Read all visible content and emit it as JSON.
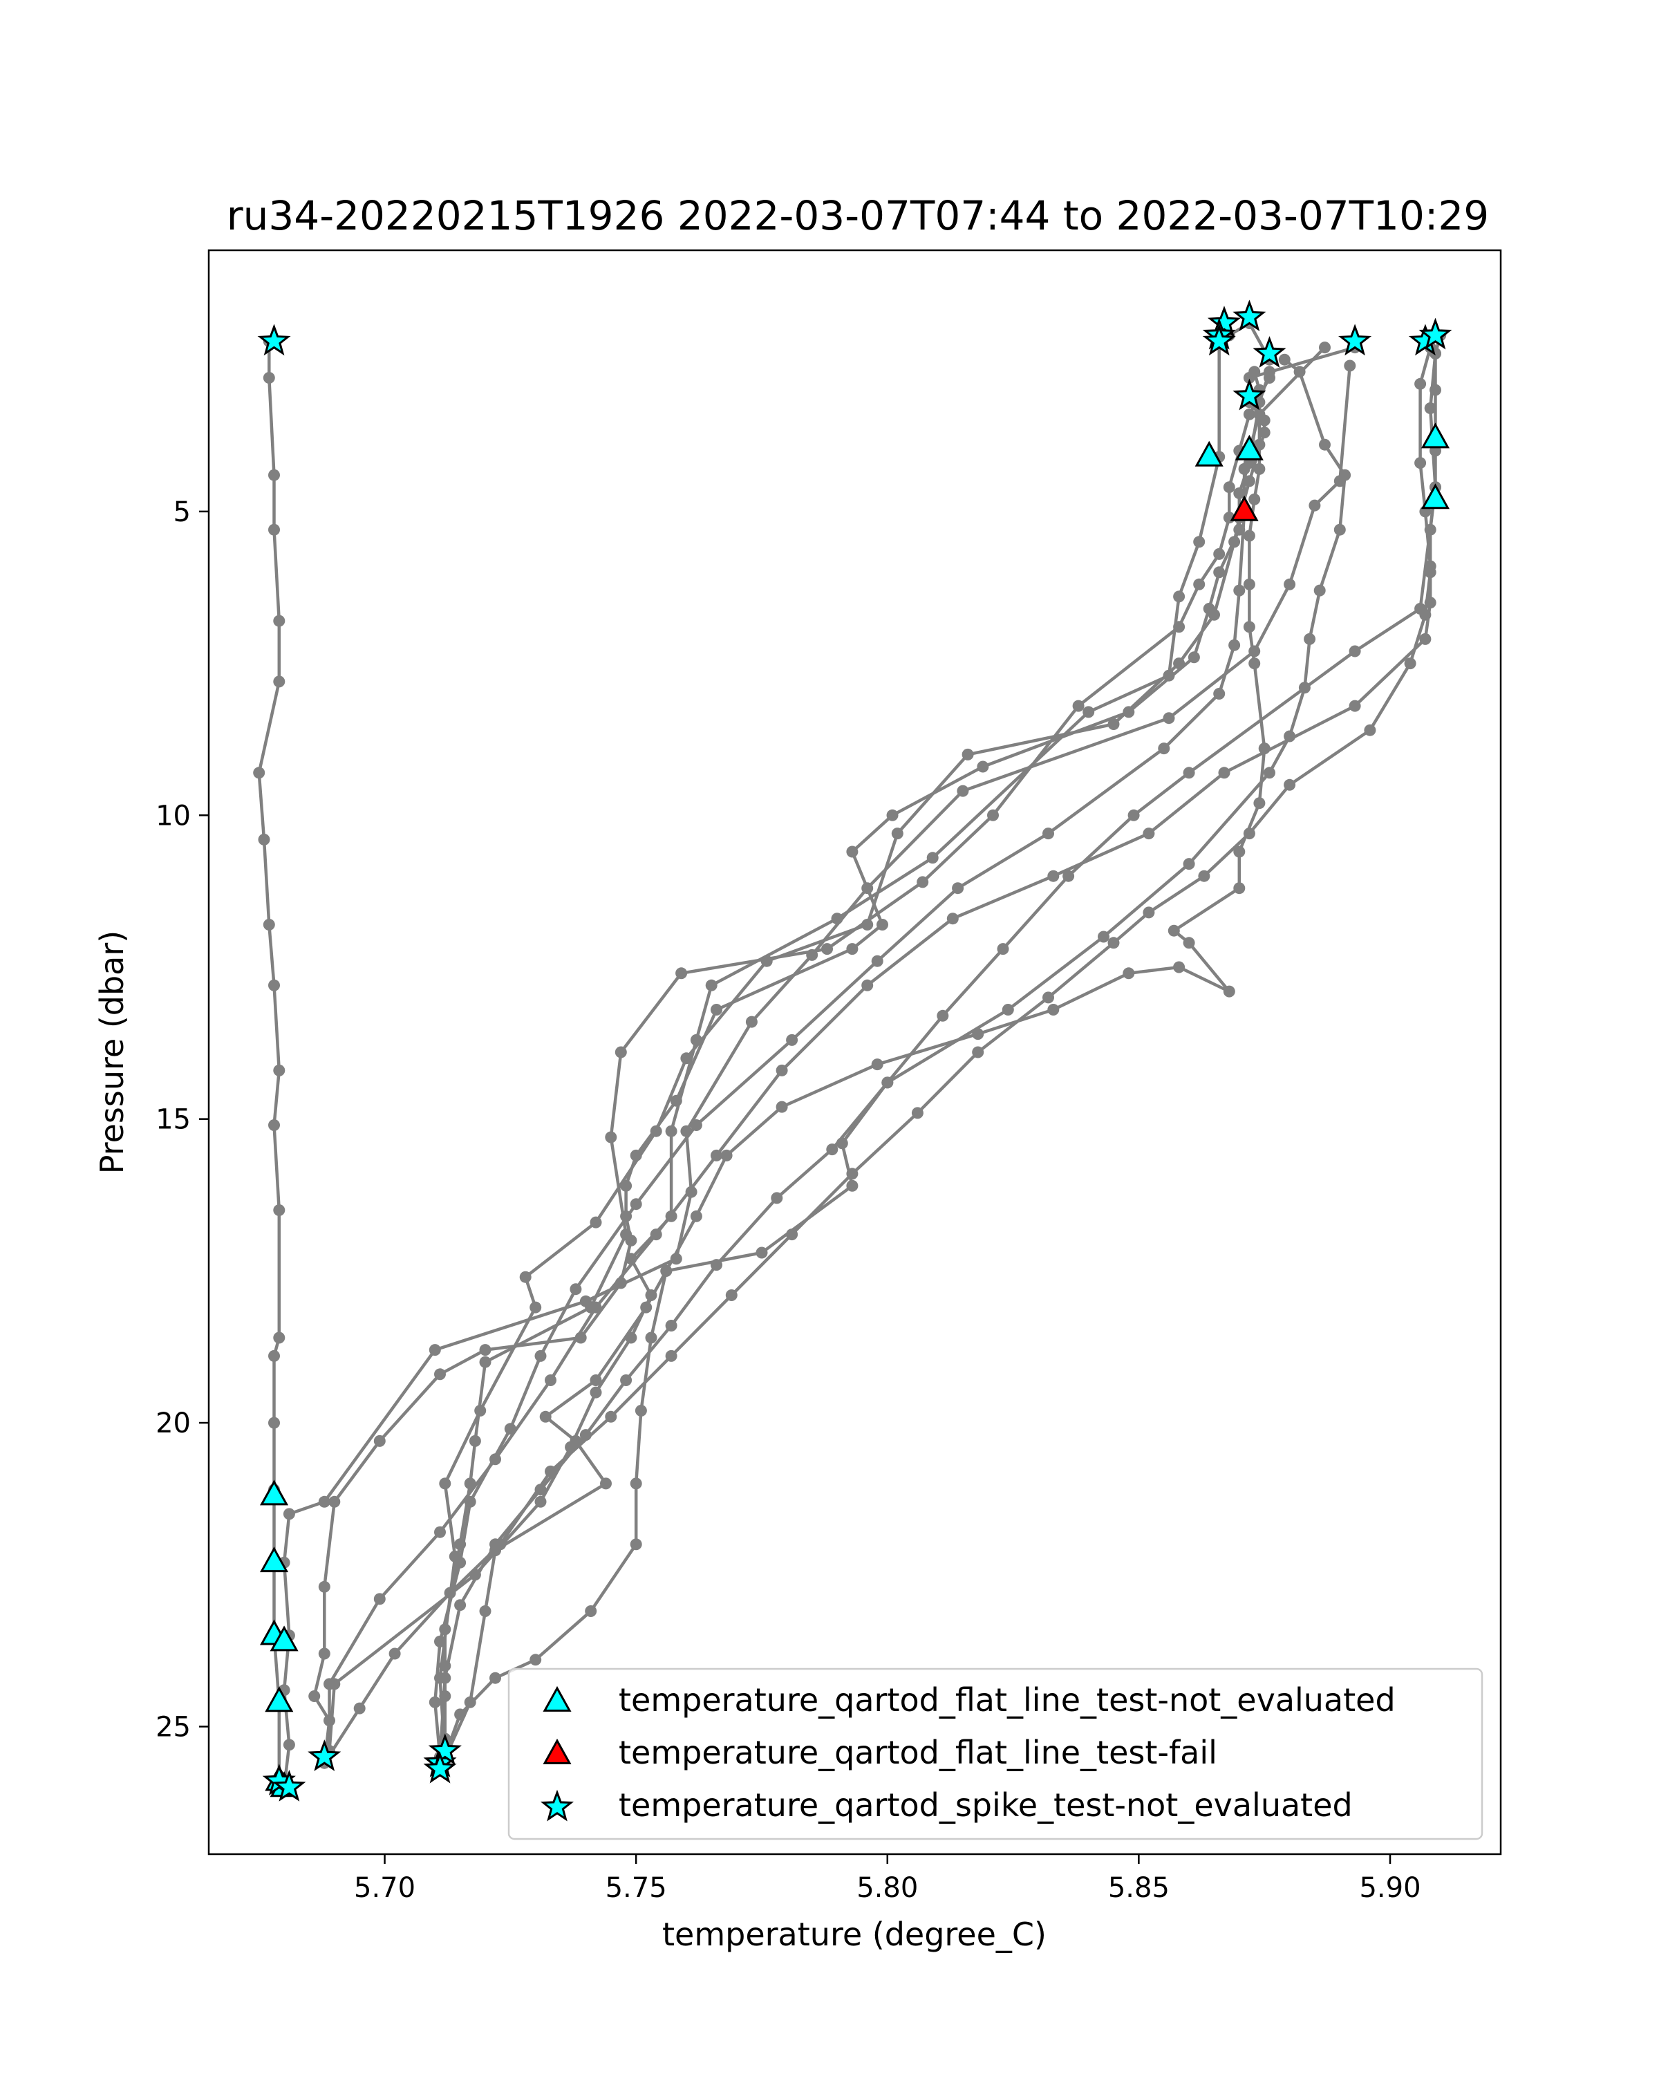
{
  "chart_data": {
    "type": "line",
    "title": "ru34-20220215T1926 2022-03-07T07:44 to 2022-03-07T10:29",
    "xlabel": "temperature (degree_C)",
    "ylabel": "Pressure (dbar)",
    "xlim": [
      5.665,
      5.922
    ],
    "ylim": [
      27.1,
      0.7
    ],
    "y_inverted": true,
    "x_ticks": [
      5.7,
      5.75,
      5.8,
      5.85,
      5.9
    ],
    "x_tick_labels": [
      "5.70",
      "5.75",
      "5.80",
      "5.85",
      "5.90"
    ],
    "y_ticks": [
      5,
      10,
      15,
      20,
      25
    ],
    "y_tick_labels": [
      "5",
      "10",
      "15",
      "20",
      "25"
    ],
    "grid": false,
    "legend_position": "bottom-right",
    "colors": {
      "profile_line": "#808080",
      "flat_line_not_evaluated": "#00ffff",
      "flat_line_fail": "#ff0000",
      "spike_not_evaluated": "#00ffff",
      "marker_edge": "#000000"
    },
    "profiles": [
      [
        [
          5.677,
          2.2
        ],
        [
          5.677,
          2.8
        ],
        [
          5.678,
          4.4
        ],
        [
          5.678,
          5.3
        ],
        [
          5.679,
          6.8
        ],
        [
          5.679,
          7.8
        ],
        [
          5.675,
          9.3
        ],
        [
          5.676,
          10.4
        ],
        [
          5.677,
          11.8
        ],
        [
          5.678,
          12.8
        ],
        [
          5.679,
          14.2
        ],
        [
          5.678,
          15.1
        ],
        [
          5.679,
          16.5
        ],
        [
          5.679,
          18.6
        ],
        [
          5.678,
          18.9
        ],
        [
          5.678,
          20.0
        ],
        [
          5.678,
          21.1
        ],
        [
          5.678,
          22.3
        ],
        [
          5.678,
          23.5
        ],
        [
          5.679,
          24.6
        ],
        [
          5.679,
          25.9
        ],
        [
          5.68,
          26.0
        ]
      ],
      [
        [
          5.68,
          26.0
        ],
        [
          5.681,
          25.3
        ],
        [
          5.68,
          24.4
        ],
        [
          5.681,
          23.5
        ],
        [
          5.68,
          22.3
        ],
        [
          5.681,
          21.5
        ],
        [
          5.688,
          21.3
        ],
        [
          5.71,
          18.8
        ],
        [
          5.74,
          18.0
        ],
        [
          5.758,
          17.3
        ],
        [
          5.761,
          16.2
        ],
        [
          5.76,
          15.2
        ],
        [
          5.773,
          13.4
        ],
        [
          5.785,
          12.3
        ],
        [
          5.796,
          11.2
        ],
        [
          5.815,
          9.6
        ],
        [
          5.856,
          8.4
        ],
        [
          5.873,
          7.3
        ],
        [
          5.88,
          6.2
        ],
        [
          5.885,
          4.9
        ],
        [
          5.89,
          4.5
        ],
        [
          5.892,
          2.6
        ]
      ],
      [
        [
          5.893,
          2.3
        ],
        [
          5.872,
          2.8
        ],
        [
          5.872,
          3.2
        ],
        [
          5.875,
          3.5
        ],
        [
          5.875,
          3.7
        ],
        [
          5.872,
          4.5
        ],
        [
          5.87,
          5.1
        ],
        [
          5.869,
          5.5
        ],
        [
          5.865,
          6.7
        ],
        [
          5.858,
          7.5
        ],
        [
          5.845,
          8.5
        ],
        [
          5.816,
          9.0
        ],
        [
          5.802,
          10.3
        ],
        [
          5.796,
          11.8
        ],
        [
          5.776,
          12.4
        ],
        [
          5.76,
          14.0
        ],
        [
          5.754,
          15.2
        ],
        [
          5.742,
          16.7
        ],
        [
          5.728,
          17.6
        ],
        [
          5.73,
          18.1
        ],
        [
          5.719,
          19.8
        ],
        [
          5.712,
          21.0
        ],
        [
          5.714,
          22.2
        ],
        [
          5.711,
          24.2
        ],
        [
          5.712,
          25.5
        ]
      ],
      [
        [
          5.711,
          25.7
        ],
        [
          5.712,
          25.2
        ],
        [
          5.712,
          24.5
        ],
        [
          5.712,
          24.0
        ],
        [
          5.712,
          23.4
        ],
        [
          5.715,
          22.0
        ],
        [
          5.717,
          21.0
        ],
        [
          5.718,
          20.3
        ],
        [
          5.72,
          19.0
        ],
        [
          5.741,
          18.1
        ],
        [
          5.748,
          16.9
        ],
        [
          5.745,
          15.3
        ],
        [
          5.747,
          13.9
        ],
        [
          5.759,
          12.6
        ],
        [
          5.788,
          12.2
        ],
        [
          5.807,
          11.1
        ],
        [
          5.821,
          10.0
        ],
        [
          5.838,
          8.2
        ],
        [
          5.858,
          6.9
        ],
        [
          5.862,
          6.2
        ],
        [
          5.866,
          5.7
        ],
        [
          5.868,
          5.1
        ],
        [
          5.868,
          4.6
        ],
        [
          5.87,
          4.0
        ],
        [
          5.872,
          3.4
        ],
        [
          5.876,
          2.8
        ]
      ],
      [
        [
          5.876,
          2.5
        ],
        [
          5.872,
          1.9
        ],
        [
          5.868,
          2.1
        ],
        [
          5.866,
          2.2
        ],
        [
          5.866,
          4.1
        ],
        [
          5.862,
          5.5
        ],
        [
          5.858,
          6.4
        ],
        [
          5.856,
          7.7
        ],
        [
          5.84,
          8.3
        ],
        [
          5.809,
          10.7
        ],
        [
          5.79,
          11.7
        ],
        [
          5.765,
          12.8
        ],
        [
          5.762,
          13.7
        ],
        [
          5.757,
          15.2
        ],
        [
          5.757,
          16.6
        ],
        [
          5.749,
          17.3
        ],
        [
          5.753,
          17.9
        ],
        [
          5.749,
          18.6
        ],
        [
          5.742,
          19.5
        ],
        [
          5.737,
          20.4
        ],
        [
          5.731,
          21.3
        ],
        [
          5.718,
          22.5
        ],
        [
          5.69,
          24.3
        ],
        [
          5.689,
          25.4
        ]
      ],
      [
        [
          5.688,
          25.6
        ],
        [
          5.689,
          24.9
        ],
        [
          5.686,
          24.5
        ],
        [
          5.688,
          23.8
        ],
        [
          5.688,
          22.7
        ],
        [
          5.69,
          21.3
        ],
        [
          5.699,
          20.3
        ],
        [
          5.711,
          19.2
        ],
        [
          5.72,
          18.8
        ],
        [
          5.739,
          18.6
        ],
        [
          5.747,
          17.7
        ],
        [
          5.749,
          17.0
        ],
        [
          5.748,
          16.6
        ],
        [
          5.748,
          16.1
        ],
        [
          5.75,
          15.6
        ],
        [
          5.758,
          14.7
        ],
        [
          5.766,
          13.2
        ],
        [
          5.793,
          12.2
        ],
        [
          5.799,
          11.8
        ],
        [
          5.793,
          10.6
        ],
        [
          5.801,
          10.0
        ],
        [
          5.819,
          9.2
        ],
        [
          5.848,
          8.3
        ],
        [
          5.861,
          7.4
        ],
        [
          5.864,
          6.6
        ],
        [
          5.866,
          6.0
        ],
        [
          5.87,
          5.3
        ],
        [
          5.87,
          4.7
        ],
        [
          5.872,
          4.2
        ],
        [
          5.874,
          3.2
        ],
        [
          5.876,
          2.7
        ]
      ],
      [
        [
          5.887,
          2.3
        ],
        [
          5.874,
          3.4
        ],
        [
          5.871,
          4.3
        ],
        [
          5.871,
          5.0
        ],
        [
          5.87,
          6.3
        ],
        [
          5.869,
          7.2
        ],
        [
          5.866,
          8.0
        ],
        [
          5.855,
          8.9
        ],
        [
          5.832,
          10.3
        ],
        [
          5.814,
          11.2
        ],
        [
          5.798,
          12.4
        ],
        [
          5.781,
          13.7
        ],
        [
          5.762,
          15.1
        ],
        [
          5.75,
          16.4
        ],
        [
          5.738,
          17.8
        ],
        [
          5.731,
          18.9
        ],
        [
          5.725,
          20.1
        ],
        [
          5.717,
          21.3
        ],
        [
          5.715,
          22.3
        ],
        [
          5.711,
          23.6
        ],
        [
          5.71,
          24.6
        ],
        [
          5.711,
          25.5
        ]
      ],
      [
        [
          5.711,
          25.7
        ],
        [
          5.717,
          24.6
        ],
        [
          5.72,
          23.1
        ],
        [
          5.722,
          22.1
        ],
        [
          5.744,
          21.0
        ],
        [
          5.738,
          20.3
        ],
        [
          5.732,
          19.9
        ],
        [
          5.742,
          19.3
        ],
        [
          5.752,
          18.1
        ],
        [
          5.756,
          17.5
        ],
        [
          5.775,
          17.2
        ],
        [
          5.793,
          16.1
        ],
        [
          5.791,
          15.4
        ],
        [
          5.8,
          14.4
        ],
        [
          5.824,
          13.2
        ],
        [
          5.843,
          12.0
        ],
        [
          5.86,
          10.8
        ],
        [
          5.876,
          9.3
        ],
        [
          5.88,
          8.7
        ],
        [
          5.883,
          7.9
        ],
        [
          5.884,
          7.1
        ],
        [
          5.886,
          6.3
        ],
        [
          5.89,
          5.3
        ],
        [
          5.891,
          4.4
        ],
        [
          5.887,
          3.9
        ],
        [
          5.882,
          2.7
        ],
        [
          5.879,
          2.5
        ]
      ],
      [
        [
          5.908,
          2.3
        ],
        [
          5.906,
          2.9
        ],
        [
          5.906,
          4.2
        ],
        [
          5.907,
          5.0
        ],
        [
          5.908,
          5.9
        ],
        [
          5.908,
          6.5
        ],
        [
          5.907,
          7.1
        ],
        [
          5.893,
          8.2
        ],
        [
          5.867,
          9.3
        ],
        [
          5.852,
          10.3
        ],
        [
          5.833,
          11.0
        ],
        [
          5.813,
          11.7
        ],
        [
          5.796,
          12.8
        ],
        [
          5.779,
          14.2
        ],
        [
          5.766,
          15.6
        ],
        [
          5.754,
          16.9
        ],
        [
          5.742,
          18.1
        ],
        [
          5.733,
          19.3
        ],
        [
          5.722,
          20.6
        ],
        [
          5.711,
          21.8
        ],
        [
          5.699,
          22.9
        ],
        [
          5.689,
          24.3
        ],
        [
          5.689,
          25.4
        ]
      ],
      [
        [
          5.688,
          25.6
        ],
        [
          5.695,
          24.7
        ],
        [
          5.702,
          23.8
        ],
        [
          5.713,
          22.8
        ],
        [
          5.723,
          22.0
        ],
        [
          5.733,
          20.8
        ],
        [
          5.745,
          19.9
        ],
        [
          5.757,
          18.9
        ],
        [
          5.769,
          17.9
        ],
        [
          5.781,
          16.9
        ],
        [
          5.793,
          15.9
        ],
        [
          5.806,
          14.9
        ],
        [
          5.818,
          13.9
        ],
        [
          5.832,
          13.0
        ],
        [
          5.845,
          12.1
        ],
        [
          5.852,
          11.6
        ],
        [
          5.863,
          11.0
        ],
        [
          5.872,
          10.3
        ],
        [
          5.88,
          9.5
        ],
        [
          5.896,
          8.6
        ],
        [
          5.904,
          7.5
        ],
        [
          5.907,
          6.7
        ],
        [
          5.908,
          6.0
        ],
        [
          5.908,
          5.3
        ],
        [
          5.909,
          4.6
        ],
        [
          5.909,
          4.0
        ],
        [
          5.909,
          3.0
        ],
        [
          5.909,
          2.4
        ]
      ],
      [
        [
          5.91,
          2.1
        ],
        [
          5.909,
          2.4
        ],
        [
          5.908,
          3.3
        ],
        [
          5.909,
          4.6
        ],
        [
          5.906,
          6.6
        ],
        [
          5.893,
          7.3
        ],
        [
          5.86,
          9.3
        ],
        [
          5.849,
          10.0
        ],
        [
          5.836,
          11.0
        ],
        [
          5.823,
          12.2
        ],
        [
          5.811,
          13.3
        ],
        [
          5.8,
          14.4
        ],
        [
          5.789,
          15.5
        ],
        [
          5.778,
          16.3
        ],
        [
          5.766,
          17.4
        ],
        [
          5.757,
          18.4
        ],
        [
          5.748,
          19.3
        ],
        [
          5.74,
          20.2
        ],
        [
          5.731,
          21.1
        ],
        [
          5.722,
          22.0
        ],
        [
          5.715,
          23.0
        ],
        [
          5.712,
          24.2
        ],
        [
          5.711,
          25.5
        ]
      ],
      [
        [
          5.711,
          25.7
        ],
        [
          5.715,
          24.8
        ],
        [
          5.722,
          24.2
        ],
        [
          5.73,
          23.9
        ],
        [
          5.741,
          23.1
        ],
        [
          5.75,
          22.0
        ],
        [
          5.75,
          21.0
        ],
        [
          5.751,
          19.8
        ],
        [
          5.753,
          18.6
        ],
        [
          5.756,
          17.5
        ],
        [
          5.762,
          16.6
        ],
        [
          5.768,
          15.6
        ],
        [
          5.779,
          14.8
        ],
        [
          5.798,
          14.1
        ],
        [
          5.818,
          13.6
        ],
        [
          5.833,
          13.2
        ],
        [
          5.848,
          12.6
        ],
        [
          5.858,
          12.5
        ],
        [
          5.868,
          12.9
        ],
        [
          5.86,
          12.1
        ],
        [
          5.857,
          11.9
        ],
        [
          5.87,
          11.2
        ],
        [
          5.87,
          10.6
        ],
        [
          5.874,
          9.8
        ],
        [
          5.875,
          8.9
        ],
        [
          5.873,
          7.5
        ],
        [
          5.872,
          6.9
        ],
        [
          5.872,
          6.2
        ],
        [
          5.872,
          5.4
        ],
        [
          5.873,
          4.8
        ],
        [
          5.874,
          4.3
        ],
        [
          5.874,
          3.9
        ],
        [
          5.874,
          3.0
        ],
        [
          5.873,
          2.7
        ]
      ]
    ],
    "series": [
      {
        "name": "temperature_qartod_flat_line_test-not_evaluated",
        "marker": "triangle",
        "color": "#00ffff",
        "points": [
          [
            5.864,
            4.1
          ],
          [
            5.872,
            4.0
          ],
          [
            5.909,
            3.8
          ],
          [
            5.909,
            4.8
          ],
          [
            5.678,
            21.2
          ],
          [
            5.678,
            22.3
          ],
          [
            5.678,
            23.5
          ],
          [
            5.68,
            23.6
          ],
          [
            5.679,
            24.6
          ],
          [
            5.679,
            25.9
          ],
          [
            5.68,
            26.0
          ]
        ]
      },
      {
        "name": "temperature_qartod_flat_line_test-fail",
        "marker": "triangle",
        "color": "#ff0000",
        "points": [
          [
            5.871,
            5.0
          ]
        ]
      },
      {
        "name": "temperature_qartod_spike_test-not_evaluated",
        "marker": "star",
        "color": "#00ffff",
        "points": [
          [
            5.678,
            2.2
          ],
          [
            5.867,
            1.9
          ],
          [
            5.866,
            2.1
          ],
          [
            5.866,
            2.2
          ],
          [
            5.872,
            1.8
          ],
          [
            5.876,
            2.4
          ],
          [
            5.872,
            3.1
          ],
          [
            5.893,
            2.2
          ],
          [
            5.907,
            2.2
          ],
          [
            5.909,
            2.1
          ],
          [
            5.679,
            25.9
          ],
          [
            5.681,
            26.0
          ],
          [
            5.688,
            25.5
          ],
          [
            5.711,
            25.6
          ],
          [
            5.712,
            25.4
          ],
          [
            5.711,
            25.7
          ]
        ]
      }
    ]
  }
}
